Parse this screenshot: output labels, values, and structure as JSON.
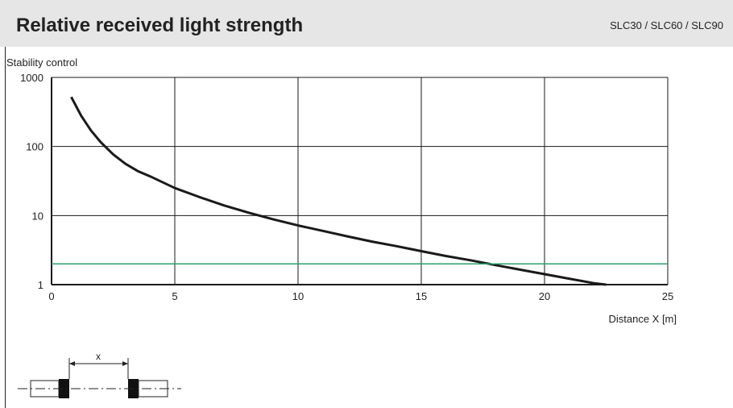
{
  "header": {
    "title": "Relative received light strength",
    "models": "SLC30 / SLC60 / SLC90"
  },
  "chart_data": {
    "type": "line",
    "title": "Relative received light strength",
    "ylabel": "Stability control",
    "xlabel": "Distance X [m]",
    "xlim": [
      0,
      25
    ],
    "ylim": [
      1,
      1000
    ],
    "yscale": "log",
    "x_ticks": [
      0,
      5,
      10,
      15,
      20,
      25
    ],
    "y_ticks": [
      1,
      10,
      100,
      1000
    ],
    "grid": true,
    "colors": {
      "curve": "#1a1a1a",
      "reference": "#2e9e6e",
      "grid": "#1a1a1a"
    },
    "series": [
      {
        "x": [
          0.8,
          1.2,
          1.6,
          2.0,
          2.5,
          3.0,
          3.5,
          4.0,
          5.0,
          6.0,
          7.0,
          8.0,
          9.0,
          10.0,
          11.0,
          12.0,
          13.0,
          14.0,
          15.0,
          16.0,
          17.0,
          18.0,
          19.0,
          20.0,
          21.0,
          22.0,
          22.5
        ],
        "values": [
          520,
          280,
          170,
          115,
          77,
          56,
          44,
          37,
          25,
          18.5,
          14,
          11,
          8.8,
          7.2,
          6.0,
          5.0,
          4.2,
          3.6,
          3.05,
          2.6,
          2.25,
          1.92,
          1.65,
          1.42,
          1.22,
          1.05,
          1.0
        ]
      },
      {
        "x": [
          0,
          25
        ],
        "values": [
          2,
          2
        ]
      }
    ]
  },
  "diagram": {
    "distance_label": "x"
  }
}
